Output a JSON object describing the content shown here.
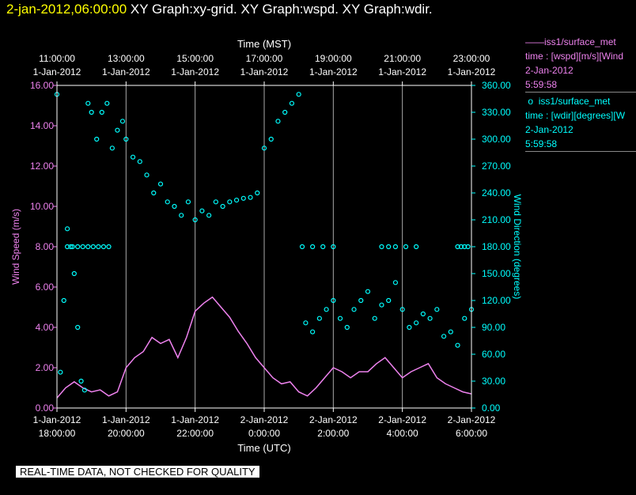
{
  "header": {
    "datetime": "2-jan-2012,06:00:00",
    "graphs": "XY Graph:xy-grid.  XY Graph:wspd.  XY Graph:wdir."
  },
  "legend": {
    "wspd": {
      "line1": "iss1/surface_met",
      "line2": "time : [wspd][m/s][Wind",
      "line3": "2-Jan-2012",
      "line4": "5:59:58",
      "color": "#ee82ee"
    },
    "wdir": {
      "line1": "iss1/surface_met",
      "line2": "time : [wdir][degrees][W",
      "line3": "2-Jan-2012",
      "line4": "5:59:58",
      "color": "#00ffff"
    }
  },
  "qc_banner": "REAL-TIME DATA, NOT CHECKED FOR QUALITY",
  "chart_data": {
    "type": "line",
    "top_axis": {
      "label": "Time (MST)",
      "ticks": [
        {
          "x": 11,
          "time": "11:00:00",
          "date": "1-Jan-2012"
        },
        {
          "x": 13,
          "time": "13:00:00",
          "date": "1-Jan-2012"
        },
        {
          "x": 15,
          "time": "15:00:00",
          "date": "1-Jan-2012"
        },
        {
          "x": 17,
          "time": "17:00:00",
          "date": "1-Jan-2012"
        },
        {
          "x": 19,
          "time": "19:00:00",
          "date": "1-Jan-2012"
        },
        {
          "x": 21,
          "time": "21:00:00",
          "date": "1-Jan-2012"
        },
        {
          "x": 23,
          "time": "23:00:00",
          "date": "1-Jan-2012"
        }
      ]
    },
    "bottom_axis": {
      "label": "Time (UTC)",
      "ticks": [
        {
          "x": 18,
          "date": "1-Jan-2012",
          "time": "18:00:00"
        },
        {
          "x": 20,
          "date": "1-Jan-2012",
          "time": "20:00:00"
        },
        {
          "x": 22,
          "date": "1-Jan-2012",
          "time": "22:00:00"
        },
        {
          "x": 24,
          "date": "2-Jan-2012",
          "time": "0:00:00"
        },
        {
          "x": 26,
          "date": "2-Jan-2012",
          "time": "2:00:00"
        },
        {
          "x": 28,
          "date": "2-Jan-2012",
          "time": "4:00:00"
        },
        {
          "x": 30,
          "date": "2-Jan-2012",
          "time": "6:00:00"
        }
      ]
    },
    "xlim_utc_hours": [
      18,
      30
    ],
    "left_axis": {
      "label": "Wind Speed (m/s)",
      "ylim": [
        0,
        16
      ],
      "ticks": [
        "0.00",
        "2.00",
        "4.00",
        "6.00",
        "8.00",
        "10.00",
        "12.00",
        "14.00",
        "16.00"
      ],
      "color": "#ee82ee"
    },
    "right_axis": {
      "label": "Wind Direction (degrees)",
      "ylim": [
        0,
        360
      ],
      "ticks": [
        "0.00",
        "30.00",
        "60.00",
        "90.00",
        "120.00",
        "150.00",
        "180.00",
        "210.00",
        "240.00",
        "270.00",
        "300.00",
        "330.00",
        "360.00"
      ],
      "color": "#00ffff"
    },
    "grid": "vertical",
    "series": [
      {
        "key": "wspd",
        "style": "line",
        "axis": "left",
        "color": "#ee82ee",
        "x": [
          18.0,
          18.25,
          18.5,
          18.75,
          19.0,
          19.25,
          19.5,
          19.75,
          20.0,
          20.25,
          20.5,
          20.75,
          21.0,
          21.25,
          21.5,
          21.75,
          22.0,
          22.25,
          22.5,
          22.75,
          23.0,
          23.25,
          23.5,
          23.75,
          24.0,
          24.25,
          24.5,
          24.75,
          25.0,
          25.25,
          25.5,
          25.75,
          26.0,
          26.25,
          26.5,
          26.75,
          27.0,
          27.25,
          27.5,
          27.75,
          28.0,
          28.25,
          28.5,
          28.75,
          29.0,
          29.25,
          29.5,
          29.75,
          30.0
        ],
        "y": [
          0.5,
          1.0,
          1.3,
          1.0,
          0.8,
          0.9,
          0.6,
          0.8,
          2.0,
          2.5,
          2.8,
          3.5,
          3.2,
          3.4,
          2.5,
          3.5,
          4.8,
          5.2,
          5.5,
          5.0,
          4.5,
          3.8,
          3.2,
          2.5,
          2.0,
          1.5,
          1.2,
          1.3,
          0.8,
          0.6,
          1.0,
          1.5,
          2.0,
          1.8,
          1.5,
          1.8,
          1.8,
          2.2,
          2.5,
          2.0,
          1.5,
          1.8,
          2.0,
          2.2,
          1.5,
          1.2,
          1.0,
          0.8,
          0.7
        ]
      },
      {
        "key": "wdir",
        "style": "scatter",
        "axis": "right",
        "color": "#00ffff",
        "x": [
          18.0,
          18.1,
          18.2,
          18.3,
          18.4,
          18.5,
          18.6,
          18.7,
          18.8,
          18.9,
          19.0,
          19.15,
          19.3,
          19.45,
          19.6,
          19.75,
          19.9,
          20.0,
          20.2,
          20.4,
          20.6,
          20.8,
          21.0,
          21.2,
          21.4,
          21.6,
          21.8,
          22.0,
          22.2,
          22.4,
          22.6,
          22.8,
          23.0,
          23.2,
          23.4,
          23.6,
          23.8,
          24.0,
          24.2,
          24.4,
          24.6,
          24.8,
          25.0,
          25.2,
          25.4,
          25.6,
          25.8,
          26.0,
          26.2,
          26.4,
          26.6,
          26.8,
          27.0,
          27.2,
          27.4,
          27.6,
          27.8,
          28.0,
          28.2,
          28.4,
          28.6,
          28.8,
          29.0,
          29.2,
          29.4,
          29.6,
          29.8,
          30.0
        ],
        "y": [
          350,
          40,
          120,
          200,
          180,
          150,
          90,
          30,
          20,
          340,
          330,
          300,
          330,
          340,
          290,
          310,
          320,
          300,
          280,
          275,
          260,
          240,
          250,
          230,
          225,
          215,
          230,
          210,
          220,
          215,
          230,
          225,
          230,
          232,
          234,
          235,
          240,
          290,
          300,
          320,
          330,
          340,
          350,
          95,
          85,
          100,
          110,
          120,
          100,
          90,
          110,
          120,
          130,
          100,
          115,
          120,
          140,
          110,
          90,
          95,
          105,
          100,
          110,
          80,
          85,
          70,
          100,
          110
        ]
      },
      {
        "key": "wdir_flat",
        "style": "scatter",
        "axis": "right",
        "color": "#00ffff",
        "x": [
          18.3,
          18.45,
          18.6,
          18.75,
          18.9,
          19.05,
          19.2,
          19.35,
          19.5,
          25.1,
          25.4,
          25.7,
          26.0,
          27.4,
          27.6,
          27.8,
          28.1,
          28.4,
          29.6,
          29.7,
          29.8,
          29.9
        ],
        "y": [
          180,
          180,
          180,
          180,
          180,
          180,
          180,
          180,
          180,
          180,
          180,
          180,
          180,
          180,
          180,
          180,
          180,
          180,
          180,
          180,
          180,
          180
        ]
      }
    ]
  }
}
